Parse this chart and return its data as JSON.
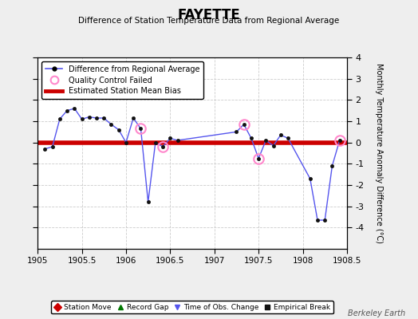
{
  "title": "FAYETTE",
  "subtitle": "Difference of Station Temperature Data from Regional Average",
  "ylabel_right": "Monthly Temperature Anomaly Difference (°C)",
  "xlim": [
    1905,
    1908.5
  ],
  "ylim": [
    -5,
    4
  ],
  "yticks": [
    -4,
    -3,
    -2,
    -1,
    0,
    1,
    2,
    3,
    4
  ],
  "xticks": [
    1905,
    1905.5,
    1906,
    1906.5,
    1907,
    1907.5,
    1908,
    1908.5
  ],
  "xtick_labels": [
    "1905",
    "1905.5",
    "1906",
    "1906.5",
    "1907",
    "1907.5",
    "1908",
    "1908.5"
  ],
  "bias_line_y": 0.0,
  "bias_color": "#cc0000",
  "line_color": "#5555ee",
  "marker_color": "#111111",
  "bg_color": "#eeeeee",
  "plot_bg_color": "#ffffff",
  "grid_color": "#cccccc",
  "watermark": "Berkeley Earth",
  "data_x": [
    1905.083,
    1905.167,
    1905.25,
    1905.333,
    1905.417,
    1905.5,
    1905.583,
    1905.667,
    1905.75,
    1905.833,
    1905.917,
    1906.0,
    1906.083,
    1906.167,
    1906.25,
    1906.333,
    1906.417,
    1906.5,
    1906.583,
    1907.25,
    1907.333,
    1907.417,
    1907.5,
    1907.583,
    1907.667,
    1907.75,
    1907.833,
    1908.083,
    1908.167,
    1908.25,
    1908.333,
    1908.417
  ],
  "data_y": [
    -0.3,
    -0.2,
    1.1,
    1.5,
    1.6,
    1.1,
    1.2,
    1.15,
    1.15,
    0.85,
    0.6,
    0.0,
    1.15,
    0.65,
    -2.8,
    0.0,
    -0.2,
    0.2,
    0.1,
    0.5,
    0.85,
    0.2,
    -0.75,
    0.1,
    -0.15,
    0.35,
    0.2,
    -1.7,
    -3.65,
    -3.65,
    -1.1,
    0.1
  ],
  "qc_failed_x": [
    1906.167,
    1906.417,
    1907.333,
    1907.5,
    1908.417
  ],
  "qc_failed_y": [
    0.65,
    -0.2,
    0.85,
    -0.75,
    0.1
  ],
  "bottom_legend": [
    {
      "label": "Station Move",
      "color": "#cc0000",
      "marker": "D"
    },
    {
      "label": "Record Gap",
      "color": "#007700",
      "marker": "^"
    },
    {
      "label": "Time of Obs. Change",
      "color": "#5555ee",
      "marker": "v"
    },
    {
      "label": "Empirical Break",
      "color": "#111111",
      "marker": "s"
    }
  ]
}
